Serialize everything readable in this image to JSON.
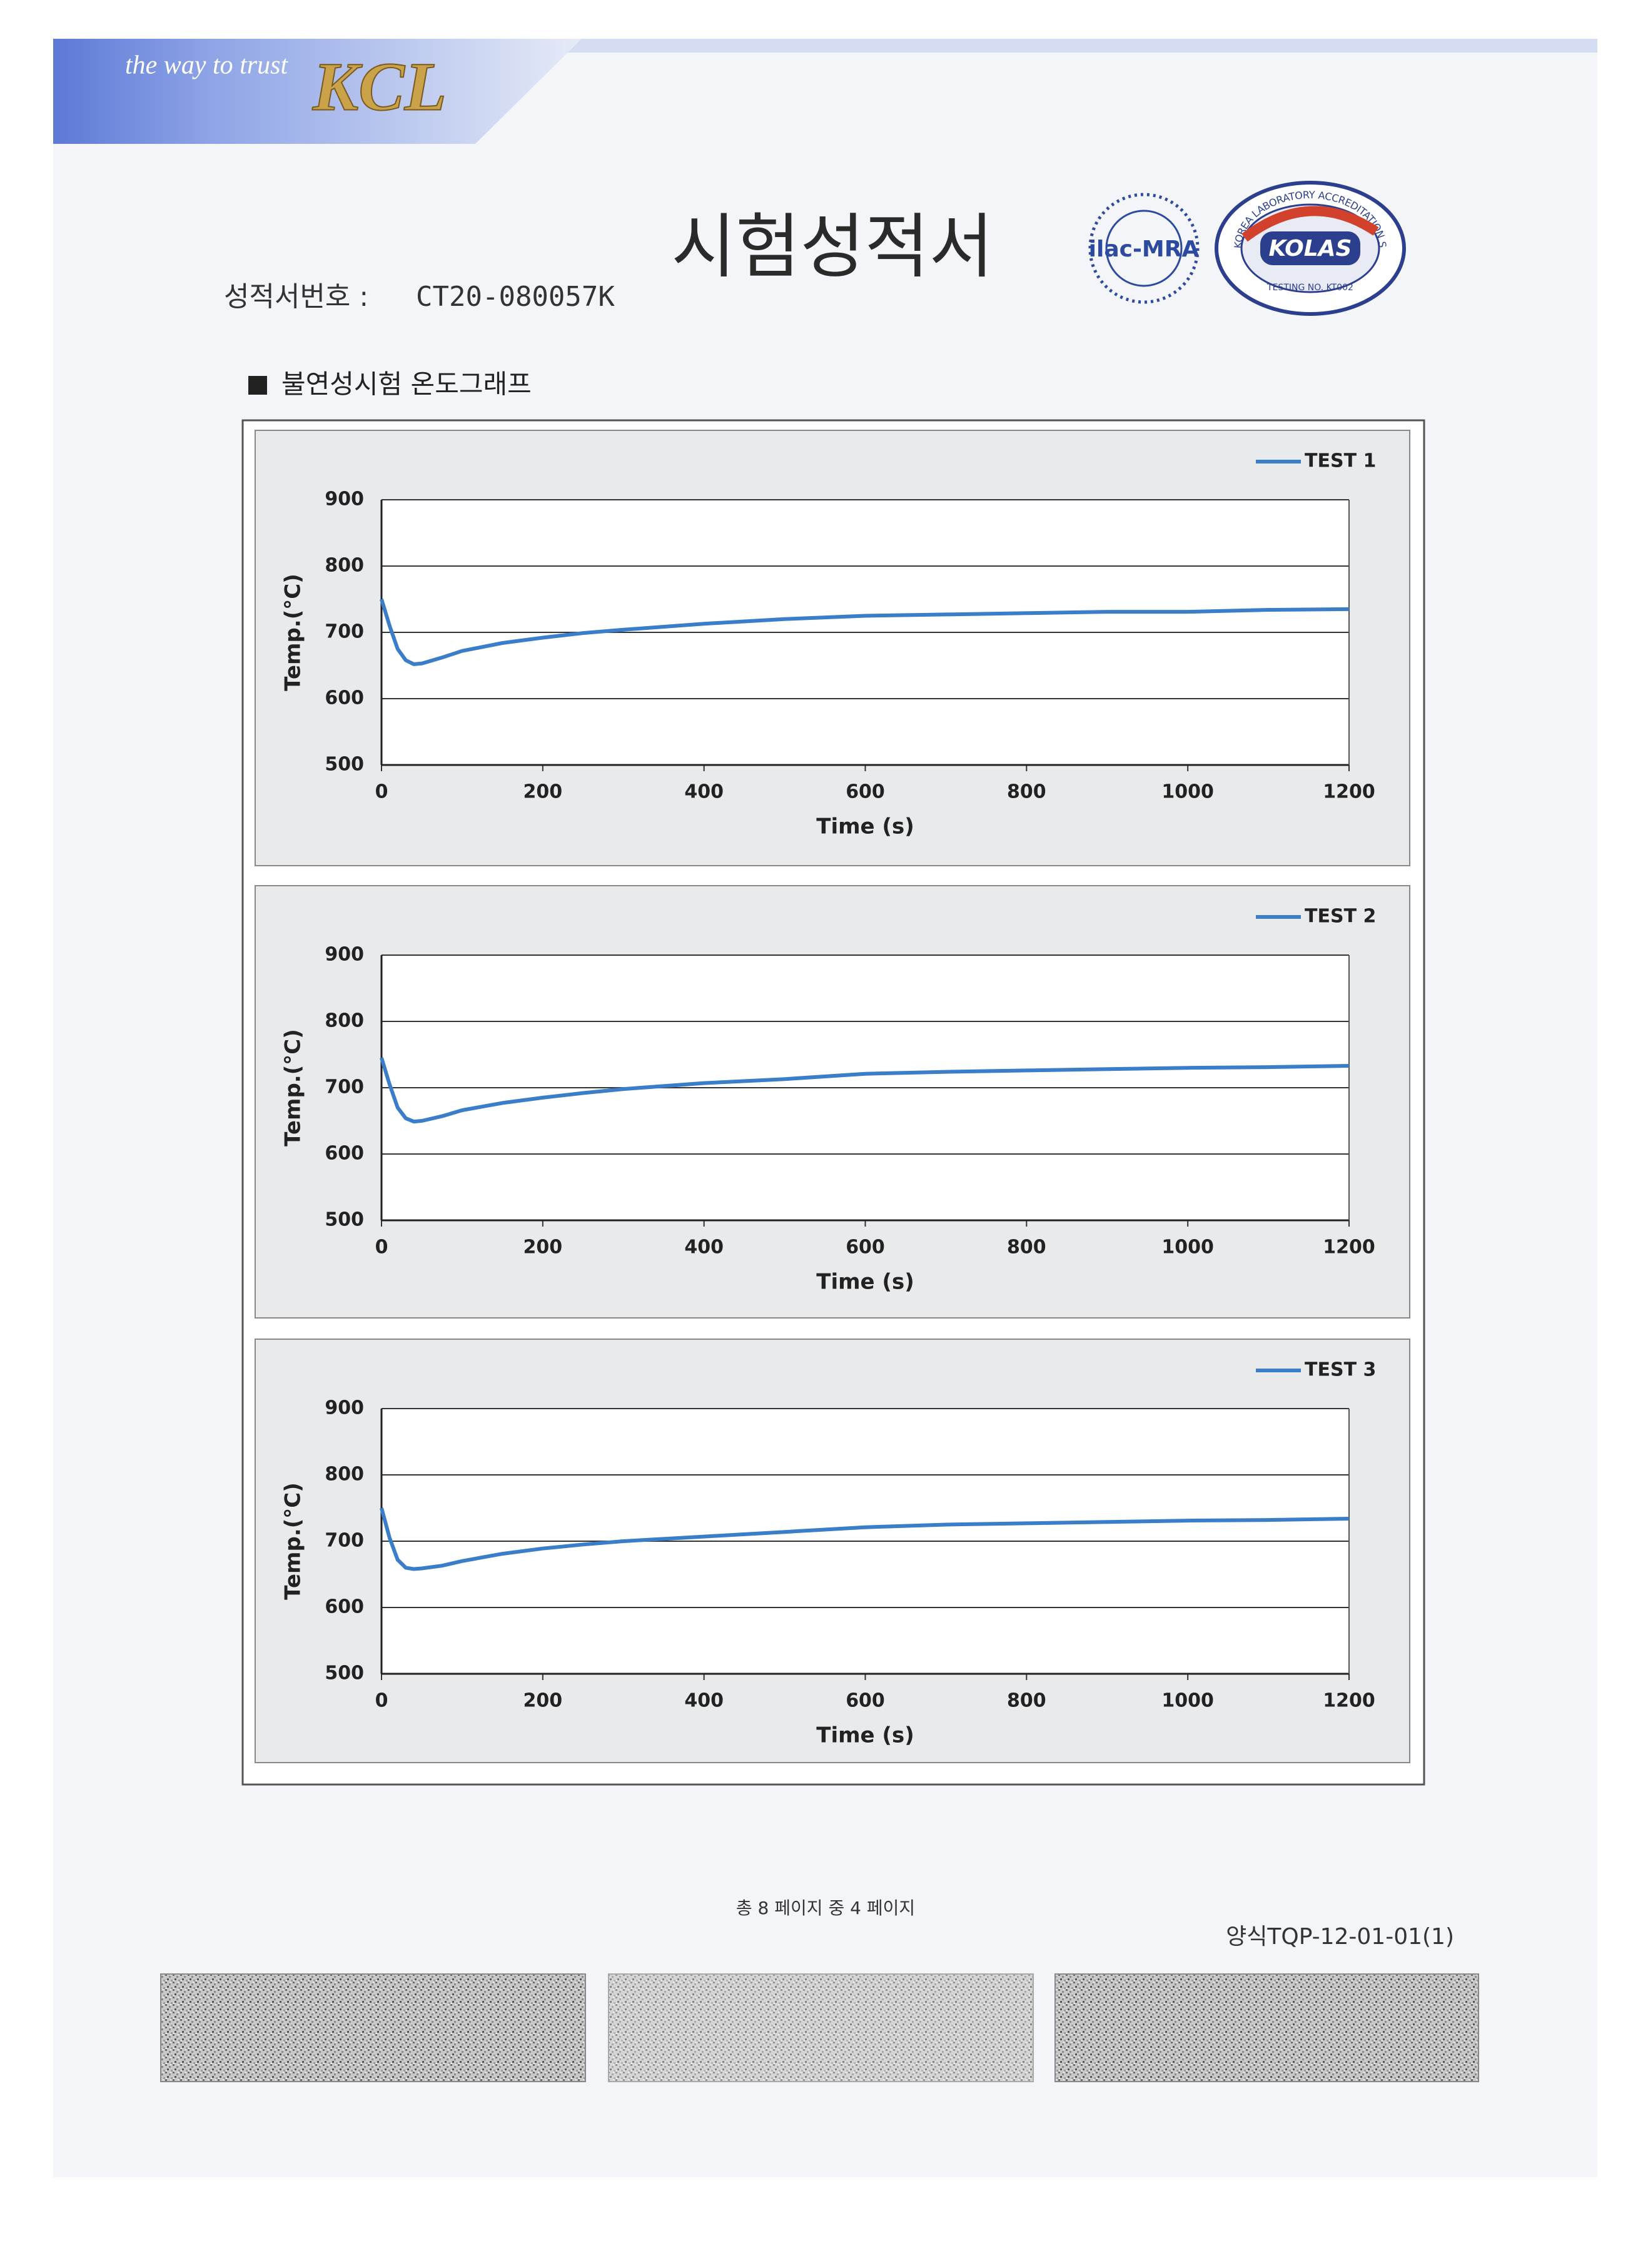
{
  "header": {
    "slogan": "the way to trust",
    "brand": "KCL",
    "title": "시험성적서",
    "report_number_label": "성적서번호 :",
    "report_number": "CT20-080057K",
    "logo_ilac": "ilac-MRA",
    "logo_kolas": "KOLAS",
    "kolas_scheme": "KOREA LABORATORY ACCREDITATION SCHEME",
    "kolas_testing": "TESTING NO. KT002"
  },
  "section_title": "불연성시험 온도그래프",
  "chart_data": [
    {
      "type": "line",
      "xlabel": "Time (s)",
      "ylabel": "Temp.(°C)",
      "x": [
        0,
        10,
        20,
        30,
        40,
        50,
        75,
        100,
        150,
        200,
        250,
        300,
        400,
        500,
        600,
        700,
        800,
        900,
        1000,
        1100,
        1200
      ],
      "series": [
        {
          "name": "TEST 1",
          "color": "#3a7dc9",
          "values": [
            750,
            710,
            675,
            658,
            652,
            653,
            662,
            672,
            684,
            692,
            699,
            704,
            713,
            720,
            725,
            727,
            729,
            731,
            731,
            734,
            735
          ]
        }
      ],
      "xlim": [
        0,
        1200
      ],
      "ylim": [
        500,
        900
      ],
      "xticks": [
        0,
        200,
        400,
        600,
        800,
        1000,
        1200
      ],
      "yticks": [
        500,
        600,
        700,
        800,
        900
      ],
      "grid": true,
      "legend": "top-right"
    },
    {
      "type": "line",
      "xlabel": "Time (s)",
      "ylabel": "Temp.(°C)",
      "x": [
        0,
        10,
        20,
        30,
        40,
        50,
        75,
        100,
        150,
        200,
        250,
        300,
        400,
        500,
        600,
        700,
        800,
        900,
        1000,
        1100,
        1200
      ],
      "series": [
        {
          "name": "TEST 2",
          "color": "#3a7dc9",
          "values": [
            745,
            705,
            670,
            654,
            649,
            650,
            657,
            666,
            677,
            685,
            692,
            698,
            707,
            713,
            721,
            724,
            726,
            728,
            730,
            731,
            733
          ]
        }
      ],
      "xlim": [
        0,
        1200
      ],
      "ylim": [
        500,
        900
      ],
      "xticks": [
        0,
        200,
        400,
        600,
        800,
        1000,
        1200
      ],
      "yticks": [
        500,
        600,
        700,
        800,
        900
      ],
      "grid": true,
      "legend": "top-right"
    },
    {
      "type": "line",
      "xlabel": "Time (s)",
      "ylabel": "Temp.(°C)",
      "x": [
        0,
        10,
        20,
        30,
        40,
        50,
        75,
        100,
        150,
        200,
        250,
        300,
        400,
        500,
        600,
        700,
        800,
        900,
        1000,
        1100,
        1200
      ],
      "series": [
        {
          "name": "TEST 3",
          "color": "#3a7dc9",
          "values": [
            750,
            705,
            672,
            660,
            658,
            659,
            663,
            670,
            681,
            689,
            695,
            700,
            707,
            714,
            721,
            725,
            727,
            729,
            731,
            732,
            734
          ]
        }
      ],
      "xlim": [
        0,
        1200
      ],
      "ylim": [
        500,
        900
      ],
      "xticks": [
        0,
        200,
        400,
        600,
        800,
        1000,
        1200
      ],
      "yticks": [
        500,
        600,
        700,
        800,
        900
      ],
      "grid": true,
      "legend": "top-right"
    }
  ],
  "footer": {
    "page": "총 8 페이지 중 4 페이지",
    "form": "양식TQP-12-01-01(1)"
  }
}
